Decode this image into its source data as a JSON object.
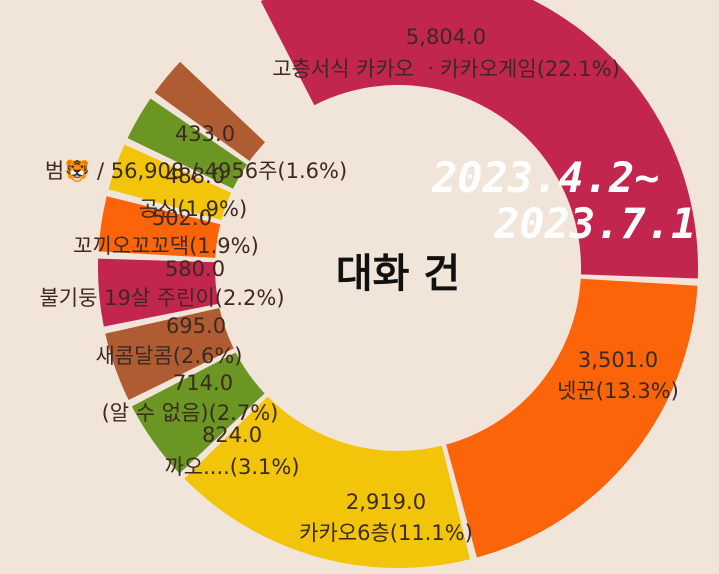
{
  "chart_data": {
    "type": "donut",
    "title": "대화 건",
    "annotation": "2023.4.2~ 2023.7.1",
    "total_label": "범🐯 / 56,908 / 4956주",
    "slices": [
      {
        "name": "고층서식 카카오 ㆍ카카오게임",
        "value": 5804.0,
        "value_label": "5,804.0",
        "percent_label": "(22.1%)",
        "color": "#c2264f"
      },
      {
        "name": "넷꾼",
        "value": 3501.0,
        "value_label": "3,501.0",
        "percent_label": "(13.3%)",
        "color": "#fb6408"
      },
      {
        "name": "카카오6층",
        "value": 2919.0,
        "value_label": "2,919.0",
        "percent_label": "(11.1%)",
        "color": "#f2c40a"
      },
      {
        "name": "까오....",
        "value": 824.0,
        "value_label": "824.0",
        "percent_label": "(3.1%)",
        "color": "#6c9623"
      },
      {
        "name": "(알 수 없음)",
        "value": 714.0,
        "value_label": "714.0",
        "percent_label": "(2.7%)",
        "color": "#b05c32"
      },
      {
        "name": "새콤달콤",
        "value": 695.0,
        "value_label": "695.0",
        "percent_label": "(2.6%)",
        "color": "#c2264f"
      },
      {
        "name": "불기둥 19살 주린이",
        "value": 580.0,
        "value_label": "580.0",
        "percent_label": "(2.2%)",
        "color": "#fb6408"
      },
      {
        "name": "꼬끼오꼬꼬댁",
        "value": 502.0,
        "value_label": "502.0",
        "percent_label": "(1.9%)",
        "color": "#f2c40a"
      },
      {
        "name": "공신",
        "value": 488.0,
        "value_label": "488.0",
        "percent_label": "(1.9%)",
        "color": "#6c9623"
      },
      {
        "name": "범🐯 / 56,908 / 4956주",
        "value": 433.0,
        "value_label": "433.0",
        "percent_label": "(1.6%)",
        "color": "#b05c32"
      }
    ]
  }
}
